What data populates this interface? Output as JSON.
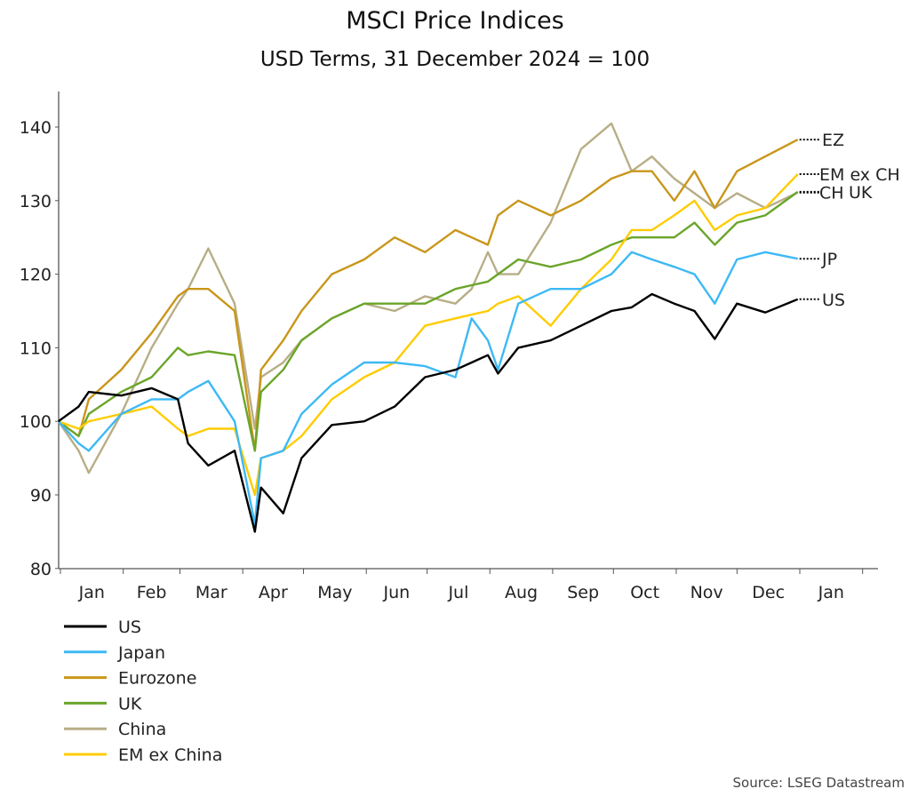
{
  "chart_data": {
    "type": "line",
    "title": "MSCI Price Indices",
    "subtitle": "USD Terms, 31 December 2024 = 100",
    "source": "Source: LSEG Datastream",
    "ylim": [
      80,
      145
    ],
    "yticks": [
      80,
      90,
      100,
      110,
      120,
      130,
      140
    ],
    "xlim": [
      "2025-01-01",
      "2026-03-10"
    ],
    "xticks": [
      "Jan",
      "Feb",
      "Mar",
      "Apr",
      "May",
      "Jun",
      "Jul",
      "Aug",
      "Sep",
      "Oct",
      "Nov",
      "Dec",
      "Jan"
    ],
    "grid": false,
    "legend_position": "bottom-left",
    "dates": [
      "2024-12-31",
      "2025-01-10",
      "2025-01-15",
      "2025-01-31",
      "2025-02-15",
      "2025-02-28",
      "2025-03-05",
      "2025-03-15",
      "2025-03-28",
      "2025-04-07",
      "2025-04-10",
      "2025-04-21",
      "2025-04-30",
      "2025-05-15",
      "2025-05-31",
      "2025-06-15",
      "2025-06-30",
      "2025-07-15",
      "2025-07-23",
      "2025-07-31",
      "2025-08-05",
      "2025-08-15",
      "2025-08-31",
      "2025-09-15",
      "2025-09-30",
      "2025-10-10",
      "2025-10-20",
      "2025-10-31",
      "2025-11-10",
      "2025-11-20",
      "2025-12-01",
      "2025-12-15",
      "2025-12-31"
    ],
    "series": [
      {
        "name": "US",
        "label": "US",
        "color": "#000000",
        "values": [
          100,
          102,
          104,
          103.5,
          104.5,
          103,
          97,
          94,
          96,
          85,
          91,
          87.5,
          95,
          99.5,
          100,
          102,
          106,
          107,
          108,
          109,
          106.5,
          110,
          111,
          113,
          115,
          115.5,
          117.3,
          116,
          115,
          111.2,
          116,
          114.8,
          116.6
        ]
      },
      {
        "name": "Japan",
        "label": "JP",
        "color": "#3db9f5",
        "values": [
          100,
          97,
          96,
          101,
          103,
          103,
          104,
          105.5,
          100,
          86,
          95,
          96,
          101,
          105,
          108,
          108,
          107.5,
          106,
          114,
          111,
          107,
          116,
          118,
          118,
          120,
          123,
          122,
          121,
          120,
          116,
          122,
          123,
          122.1
        ]
      },
      {
        "name": "Eurozone",
        "label": "EZ",
        "color": "#c9961a",
        "values": [
          100,
          98,
          103,
          107,
          112,
          117,
          118,
          118,
          115,
          96,
          107,
          111,
          115,
          120,
          122,
          125,
          123,
          126,
          125,
          124,
          128,
          130,
          128,
          130,
          133,
          134,
          134,
          130,
          134,
          129,
          134,
          136,
          138.3
        ]
      },
      {
        "name": "UK",
        "label": "UK",
        "color": "#6aa52a",
        "values": [
          100,
          98,
          101,
          104,
          106,
          110,
          109,
          109.5,
          109,
          96,
          104,
          107,
          111,
          114,
          116,
          116,
          116,
          118,
          118.5,
          119,
          120,
          122,
          121,
          122,
          124,
          125,
          125,
          125,
          127,
          124,
          127,
          128,
          131.2
        ]
      },
      {
        "name": "China",
        "label": "CH",
        "color": "#b8ae86",
        "values": [
          100,
          96,
          93,
          101,
          110,
          116,
          118,
          123.5,
          116,
          99,
          106,
          108,
          111,
          114,
          116,
          115,
          117,
          116,
          118,
          123,
          120,
          120,
          127,
          137,
          140.5,
          134,
          136,
          133,
          131,
          129,
          131,
          129,
          131.1
        ]
      },
      {
        "name": "EM ex China",
        "label": "EM ex CH",
        "color": "#ffcc00",
        "values": [
          100,
          99,
          100,
          101,
          102,
          99,
          98,
          99,
          99,
          90,
          95,
          96,
          98,
          103,
          106,
          108,
          113,
          114,
          114.5,
          115,
          116,
          117,
          113,
          118,
          122,
          126,
          126,
          128,
          130,
          126,
          128,
          129,
          133.6
        ]
      }
    ]
  }
}
